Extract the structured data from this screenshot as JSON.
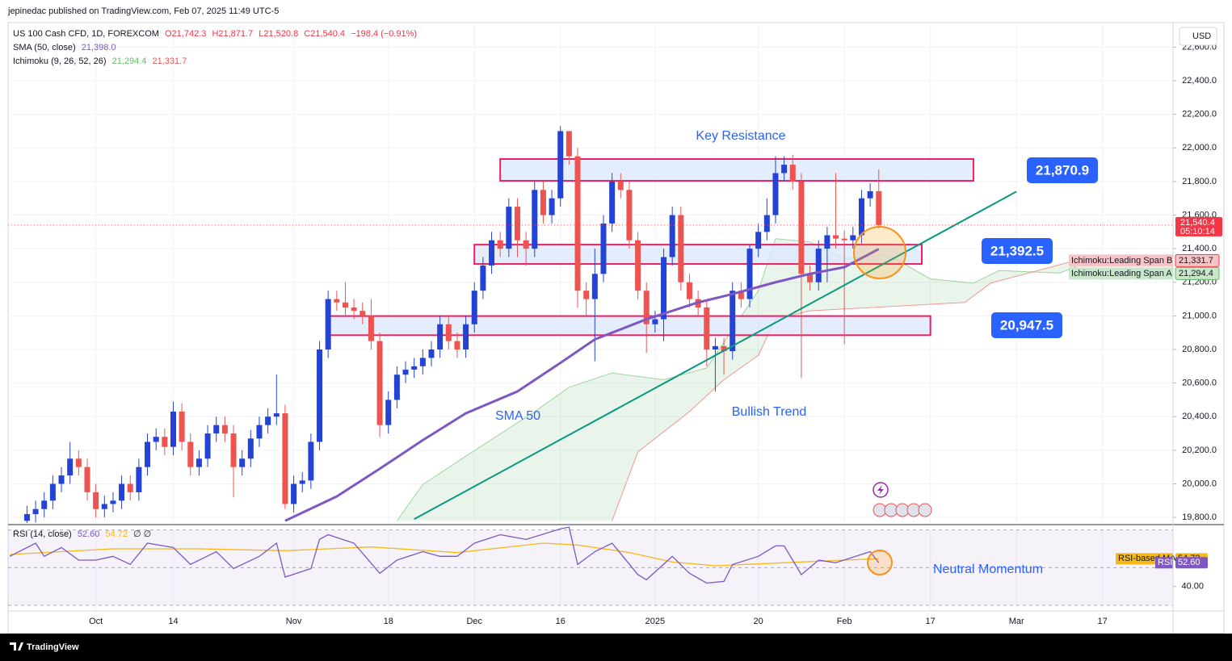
{
  "header": {
    "publisher": "jepinedac published on TradingView.com, Feb 07, 2025 11:49 UTC-5"
  },
  "footer": {
    "brand": "TradingView"
  },
  "chart_data": [
    {
      "type": "candlestick",
      "legend": {
        "name": "US 100 Cash CFD, 1D, FOREXCOM",
        "open": "O21,742.3",
        "high": "H21,871.7",
        "low": "L21,520.8",
        "close": "C21,540.4",
        "change": "−198.4 (−0.91%)"
      },
      "indicators": [
        {
          "name": "SMA (50, close)",
          "value_labels": [
            "21,398.0"
          ]
        },
        {
          "name": "Ichimoku (9, 26, 52, 26)",
          "value_labels": [
            "21,294.4",
            "21,331.7"
          ]
        }
      ],
      "currency": "USD",
      "up_color": "#2443d6",
      "down_color": "#ef5350",
      "grid": true,
      "xlim": [
        -2.2,
        133.2
      ],
      "xticks": [
        {
          "value": 8,
          "label": "Oct"
        },
        {
          "value": 17,
          "label": "14"
        },
        {
          "value": 31,
          "label": "Nov"
        },
        {
          "value": 42,
          "label": "18"
        },
        {
          "value": 52,
          "label": "Dec"
        },
        {
          "value": 62,
          "label": "16"
        },
        {
          "value": 73,
          "label": "2025"
        },
        {
          "value": 85,
          "label": "20"
        },
        {
          "value": 95,
          "label": "Feb"
        },
        {
          "value": 105,
          "label": "17"
        },
        {
          "value": 115,
          "label": "Mar"
        },
        {
          "value": 125,
          "label": "17"
        }
      ],
      "ylim": [
        19767,
        22746
      ],
      "yticks": [
        {
          "value": 19800,
          "label": "19,800.0"
        },
        {
          "value": 20000,
          "label": "20,000.0"
        },
        {
          "value": 20200,
          "label": "20,200.0"
        },
        {
          "value": 20400,
          "label": "20,400.0"
        },
        {
          "value": 20600,
          "label": "20,600.0"
        },
        {
          "value": 20800,
          "label": "20,800.0"
        },
        {
          "value": 21000,
          "label": "21,000.0"
        },
        {
          "value": 21200,
          "label": "21,200.0"
        },
        {
          "value": 21400,
          "label": "21,400.0"
        },
        {
          "value": 21600,
          "label": "21,600.0"
        },
        {
          "value": 21800,
          "label": "21,800.0"
        },
        {
          "value": 22000,
          "label": "22,000.0"
        },
        {
          "value": 22200,
          "label": "22,200.0"
        },
        {
          "value": 22400,
          "label": "22,400.0"
        },
        {
          "value": 22600,
          "label": "22,600.0"
        }
      ],
      "candles": {
        "open": [
          19780,
          19820,
          19850,
          19900,
          20000,
          20050,
          20150,
          20100,
          19950,
          19850,
          19880,
          19900,
          20000,
          19950,
          20100,
          20250,
          20280,
          20220,
          20430,
          20250,
          20100,
          20150,
          20300,
          20350,
          20300,
          20100,
          20150,
          20270,
          20350,
          20400,
          20420,
          19880,
          20000,
          20020,
          20250,
          20800,
          21100,
          21080,
          21050,
          21030,
          21000,
          20850,
          20350,
          20500,
          20650,
          20680,
          20700,
          20750,
          20800,
          20950,
          20850,
          20800,
          20950,
          21150,
          21300,
          21450,
          21400,
          21650,
          21450,
          21400,
          21750,
          21600,
          21700,
          22100,
          21950,
          21150,
          21100,
          21250,
          21550,
          21800,
          21750,
          21450,
          21150,
          20950,
          20980,
          21350,
          21600,
          21200,
          21100,
          21050,
          20800,
          20820,
          20790,
          21150,
          21100,
          21400,
          21500,
          21600,
          21850,
          21900,
          21800,
          21250,
          21200,
          21400,
          21480,
          21460,
          21450,
          21480,
          21700,
          21742.3
        ],
        "high": [
          19870,
          19900,
          19950,
          20050,
          20100,
          20250,
          20200,
          20150,
          20000,
          19930,
          19950,
          20050,
          20050,
          20150,
          20300,
          20330,
          20330,
          20490,
          20480,
          20300,
          20200,
          20350,
          20400,
          20400,
          20350,
          20200,
          20320,
          20400,
          20450,
          20650,
          20470,
          20050,
          20070,
          20300,
          20850,
          21150,
          21150,
          21200,
          21100,
          21080,
          21100,
          20900,
          20550,
          20700,
          20730,
          20750,
          20800,
          20850,
          21000,
          21000,
          20900,
          21000,
          21200,
          21350,
          21500,
          21500,
          21700,
          21700,
          21500,
          21800,
          21800,
          21750,
          22130,
          22100,
          22000,
          21200,
          21400,
          21600,
          21850,
          21850,
          21800,
          21500,
          21200,
          21030,
          21400,
          21650,
          21650,
          21250,
          21150,
          21100,
          20870,
          20870,
          21200,
          21200,
          21420,
          21550,
          21700,
          21950,
          21950,
          21960,
          21850,
          21300,
          21450,
          21530,
          21850,
          21510,
          21530,
          21750,
          21790,
          21871.7
        ],
        "low": [
          19730,
          19770,
          19800,
          19850,
          19950,
          20000,
          20050,
          19900,
          19800,
          19800,
          19830,
          19850,
          19900,
          19900,
          20050,
          20200,
          20170,
          20170,
          20200,
          20050,
          20050,
          20100,
          20250,
          20250,
          19920,
          20050,
          20100,
          20220,
          20300,
          20350,
          19850,
          19830,
          19950,
          19970,
          20200,
          20750,
          21030,
          21000,
          20980,
          20950,
          20800,
          20280,
          20300,
          20450,
          20600,
          20630,
          20650,
          20700,
          20750,
          20800,
          20750,
          20750,
          20900,
          21100,
          21250,
          21350,
          21350,
          21350,
          21300,
          21350,
          21550,
          21550,
          21650,
          21900,
          21050,
          21000,
          20730,
          21200,
          21500,
          21700,
          21400,
          21100,
          20780,
          20900,
          20850,
          21300,
          21150,
          21050,
          21000,
          20700,
          20550,
          20650,
          20740,
          21050,
          21050,
          21350,
          21450,
          21550,
          21800,
          21750,
          20630,
          21150,
          21150,
          21200,
          21400,
          20830,
          21400,
          21430,
          21650,
          21520.8
        ],
        "close": [
          19820,
          19850,
          19900,
          20000,
          20050,
          20150,
          20100,
          19950,
          19850,
          19880,
          19900,
          20000,
          19950,
          20100,
          20250,
          20280,
          20220,
          20430,
          20250,
          20100,
          20150,
          20300,
          20350,
          20300,
          20100,
          20150,
          20270,
          20350,
          20400,
          20420,
          19880,
          20000,
          20020,
          20250,
          20800,
          21100,
          21080,
          21050,
          21030,
          21000,
          20850,
          20350,
          20500,
          20650,
          20680,
          20700,
          20750,
          20800,
          20950,
          20850,
          20800,
          20950,
          21150,
          21300,
          21450,
          21400,
          21650,
          21450,
          21400,
          21750,
          21600,
          21700,
          22100,
          21950,
          21150,
          21100,
          21250,
          21550,
          21800,
          21750,
          21450,
          21150,
          20950,
          20980,
          21350,
          21600,
          21200,
          21100,
          21050,
          20800,
          20820,
          20790,
          21150,
          21100,
          21400,
          21500,
          21600,
          21850,
          21900,
          21800,
          21250,
          21200,
          21400,
          21480,
          21460,
          21450,
          21480,
          21700,
          21742.3,
          21540.4
        ]
      },
      "sma": {
        "color": "#7e57c2",
        "x": [
          30,
          36,
          41,
          46,
          51,
          57,
          62,
          66,
          72,
          78,
          82,
          87,
          91,
          95,
          99
        ],
        "values": [
          19780,
          19925,
          20090,
          20260,
          20420,
          20550,
          20720,
          20860,
          20980,
          21080,
          21130,
          21200,
          21250,
          21290,
          21398.0
        ]
      },
      "span_a": {
        "color": "#66bb6a",
        "tag": "Ichimoku:Leading Span A",
        "tag_value": "21,294.4",
        "x": [
          43,
          46,
          51,
          59,
          63,
          68,
          74,
          79,
          85,
          87,
          91,
          95,
          100,
          105,
          110,
          113,
          120,
          122
        ],
        "values": [
          19780,
          19996,
          20165,
          20430,
          20575,
          20660,
          20620,
          20690,
          21150,
          21460,
          21440,
          21340,
          21365,
          21220,
          21195,
          21270,
          21255,
          21294.4
        ]
      },
      "span_b": {
        "color": "#ef5350",
        "tag": "Ichimoku:Leading Span B",
        "tag_value": "21,331.7",
        "x": [
          68,
          71,
          77,
          81,
          85,
          87,
          91,
          100,
          109,
          112,
          122
        ],
        "values": [
          19780,
          20190,
          20430,
          20620,
          20765,
          20980,
          21030,
          21055,
          21080,
          21195,
          21331.7
        ]
      },
      "cloud_color": "#4caf50",
      "trendline": {
        "color": "#089981",
        "x": [
          45,
          115
        ],
        "values": [
          19790,
          21740
        ]
      },
      "zones": {
        "border": "#e91e63",
        "fill": "#dce8fb",
        "items": [
          {
            "x": [
              55,
              110
            ],
            "values": [
              21804,
              21934
            ]
          },
          {
            "x": [
              52,
              104
            ],
            "values": [
              21309,
              21424
            ]
          },
          {
            "x": [
              35,
              105
            ],
            "values": [
              20885,
              20999
            ]
          }
        ]
      },
      "annotations": [
        "Key Resistance",
        "SMA 50",
        "Bullish Trend"
      ],
      "callouts": [
        "21,870.9",
        "21,392.5",
        "20,947.5"
      ],
      "price_tag": {
        "price": "21,540.4",
        "countdown": "05:10:14"
      }
    },
    {
      "type": "line",
      "legend": {
        "name": "RSI (14, close)",
        "values": [
          "52.60",
          "54.72"
        ],
        "extra": "∅ ∅"
      },
      "ylim": [
        27,
        72
      ],
      "yticks": [
        {
          "value": 40,
          "label": "40.00"
        }
      ],
      "levels": [
        70,
        50,
        30
      ],
      "series": [
        {
          "name": "RSI",
          "color": "#7e57c2",
          "tag": "52.60",
          "x": [
            -2,
            1,
            2,
            4,
            6,
            8,
            10,
            12,
            14,
            17,
            19,
            22,
            24,
            27,
            29,
            30,
            33,
            34,
            35,
            38,
            41,
            43,
            46,
            48,
            50,
            52,
            55,
            58,
            62,
            63,
            64,
            66,
            68,
            71,
            72,
            75,
            77,
            79,
            81,
            82,
            85,
            87,
            88,
            90,
            92,
            94,
            98,
            99
          ],
          "values": [
            56,
            63,
            56,
            60.7,
            54,
            54,
            56,
            51.7,
            63,
            60.7,
            51.7,
            58.5,
            49.5,
            56,
            63,
            45,
            49.5,
            65,
            67.5,
            63,
            47,
            54,
            58.5,
            56,
            56,
            63,
            67.5,
            65,
            70.6,
            71.5,
            51.7,
            58.5,
            63,
            46.3,
            43.6,
            56,
            47,
            41.8,
            42.7,
            51.7,
            56,
            61.6,
            61.6,
            46.3,
            54,
            52.6,
            58.5,
            52.6
          ]
        },
        {
          "name": "RSI-based MA",
          "color": "#f5b91b",
          "tag": "54.72",
          "x": [
            -2,
            10,
            20,
            30,
            40,
            50,
            60,
            64,
            70,
            75,
            80,
            85,
            90,
            95,
            99
          ],
          "values": [
            57,
            60,
            60,
            59,
            61,
            58,
            63,
            62,
            58,
            53,
            51,
            52,
            53,
            54,
            54.72
          ]
        }
      ],
      "annotation": "Neutral Momentum"
    }
  ]
}
